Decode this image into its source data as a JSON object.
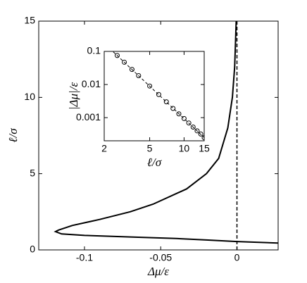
{
  "chart_data": [
    {
      "type": "line",
      "xlabel": "Δμ/ε",
      "ylabel": "ℓ/σ",
      "x": [
        -0.0005,
        -0.0015,
        -0.003,
        -0.006,
        -0.012,
        -0.02,
        -0.033,
        -0.055,
        -0.07,
        -0.09,
        -0.108,
        -0.117,
        -0.119,
        -0.115,
        -0.1,
        -0.07,
        -0.04,
        -0.02,
        0,
        0.027
      ],
      "series": [
        {
          "color": "#000000",
          "values": [
            15,
            12,
            10,
            8,
            6,
            5,
            4,
            3,
            2.5,
            2,
            1.6,
            1.3,
            1.2,
            1.05,
            0.95,
            0.85,
            0.75,
            0.65,
            0.55,
            0.45
          ]
        }
      ],
      "vline": {
        "x": 0,
        "dash": true
      },
      "xlim": [
        -0.13,
        0.027
      ],
      "xticks": [
        -0.1,
        -0.05,
        0
      ],
      "ylim": [
        0,
        15
      ],
      "yticks": [
        0,
        5,
        10,
        15
      ]
    },
    {
      "type": "scatter",
      "xlabel": "ℓ/σ",
      "ylabel": "|Δμ|/ε",
      "log_x": true,
      "log_y": true,
      "x": [
        2.6,
        3,
        3.5,
        4,
        5,
        6,
        7,
        8,
        9,
        10,
        11,
        12,
        13,
        14,
        15
      ],
      "series": [
        {
          "color": "#000000",
          "values": [
            0.075,
            0.047,
            0.0285,
            0.0185,
            0.009,
            0.005,
            0.003,
            0.0019,
            0.0013,
            0.00094,
            0.00069,
            0.00052,
            0.0004,
            0.00032,
            0.00025
          ]
        }
      ],
      "fit": {
        "x": [
          2.4,
          15
        ],
        "values": [
          0.097,
          0.00025
        ],
        "dash": true
      },
      "xlim": [
        2,
        15
      ],
      "xticks": [
        2,
        5,
        10,
        15
      ],
      "ylim": [
        0.0002,
        0.1
      ],
      "yticks": [
        0.1,
        0.01,
        0.001
      ]
    }
  ]
}
